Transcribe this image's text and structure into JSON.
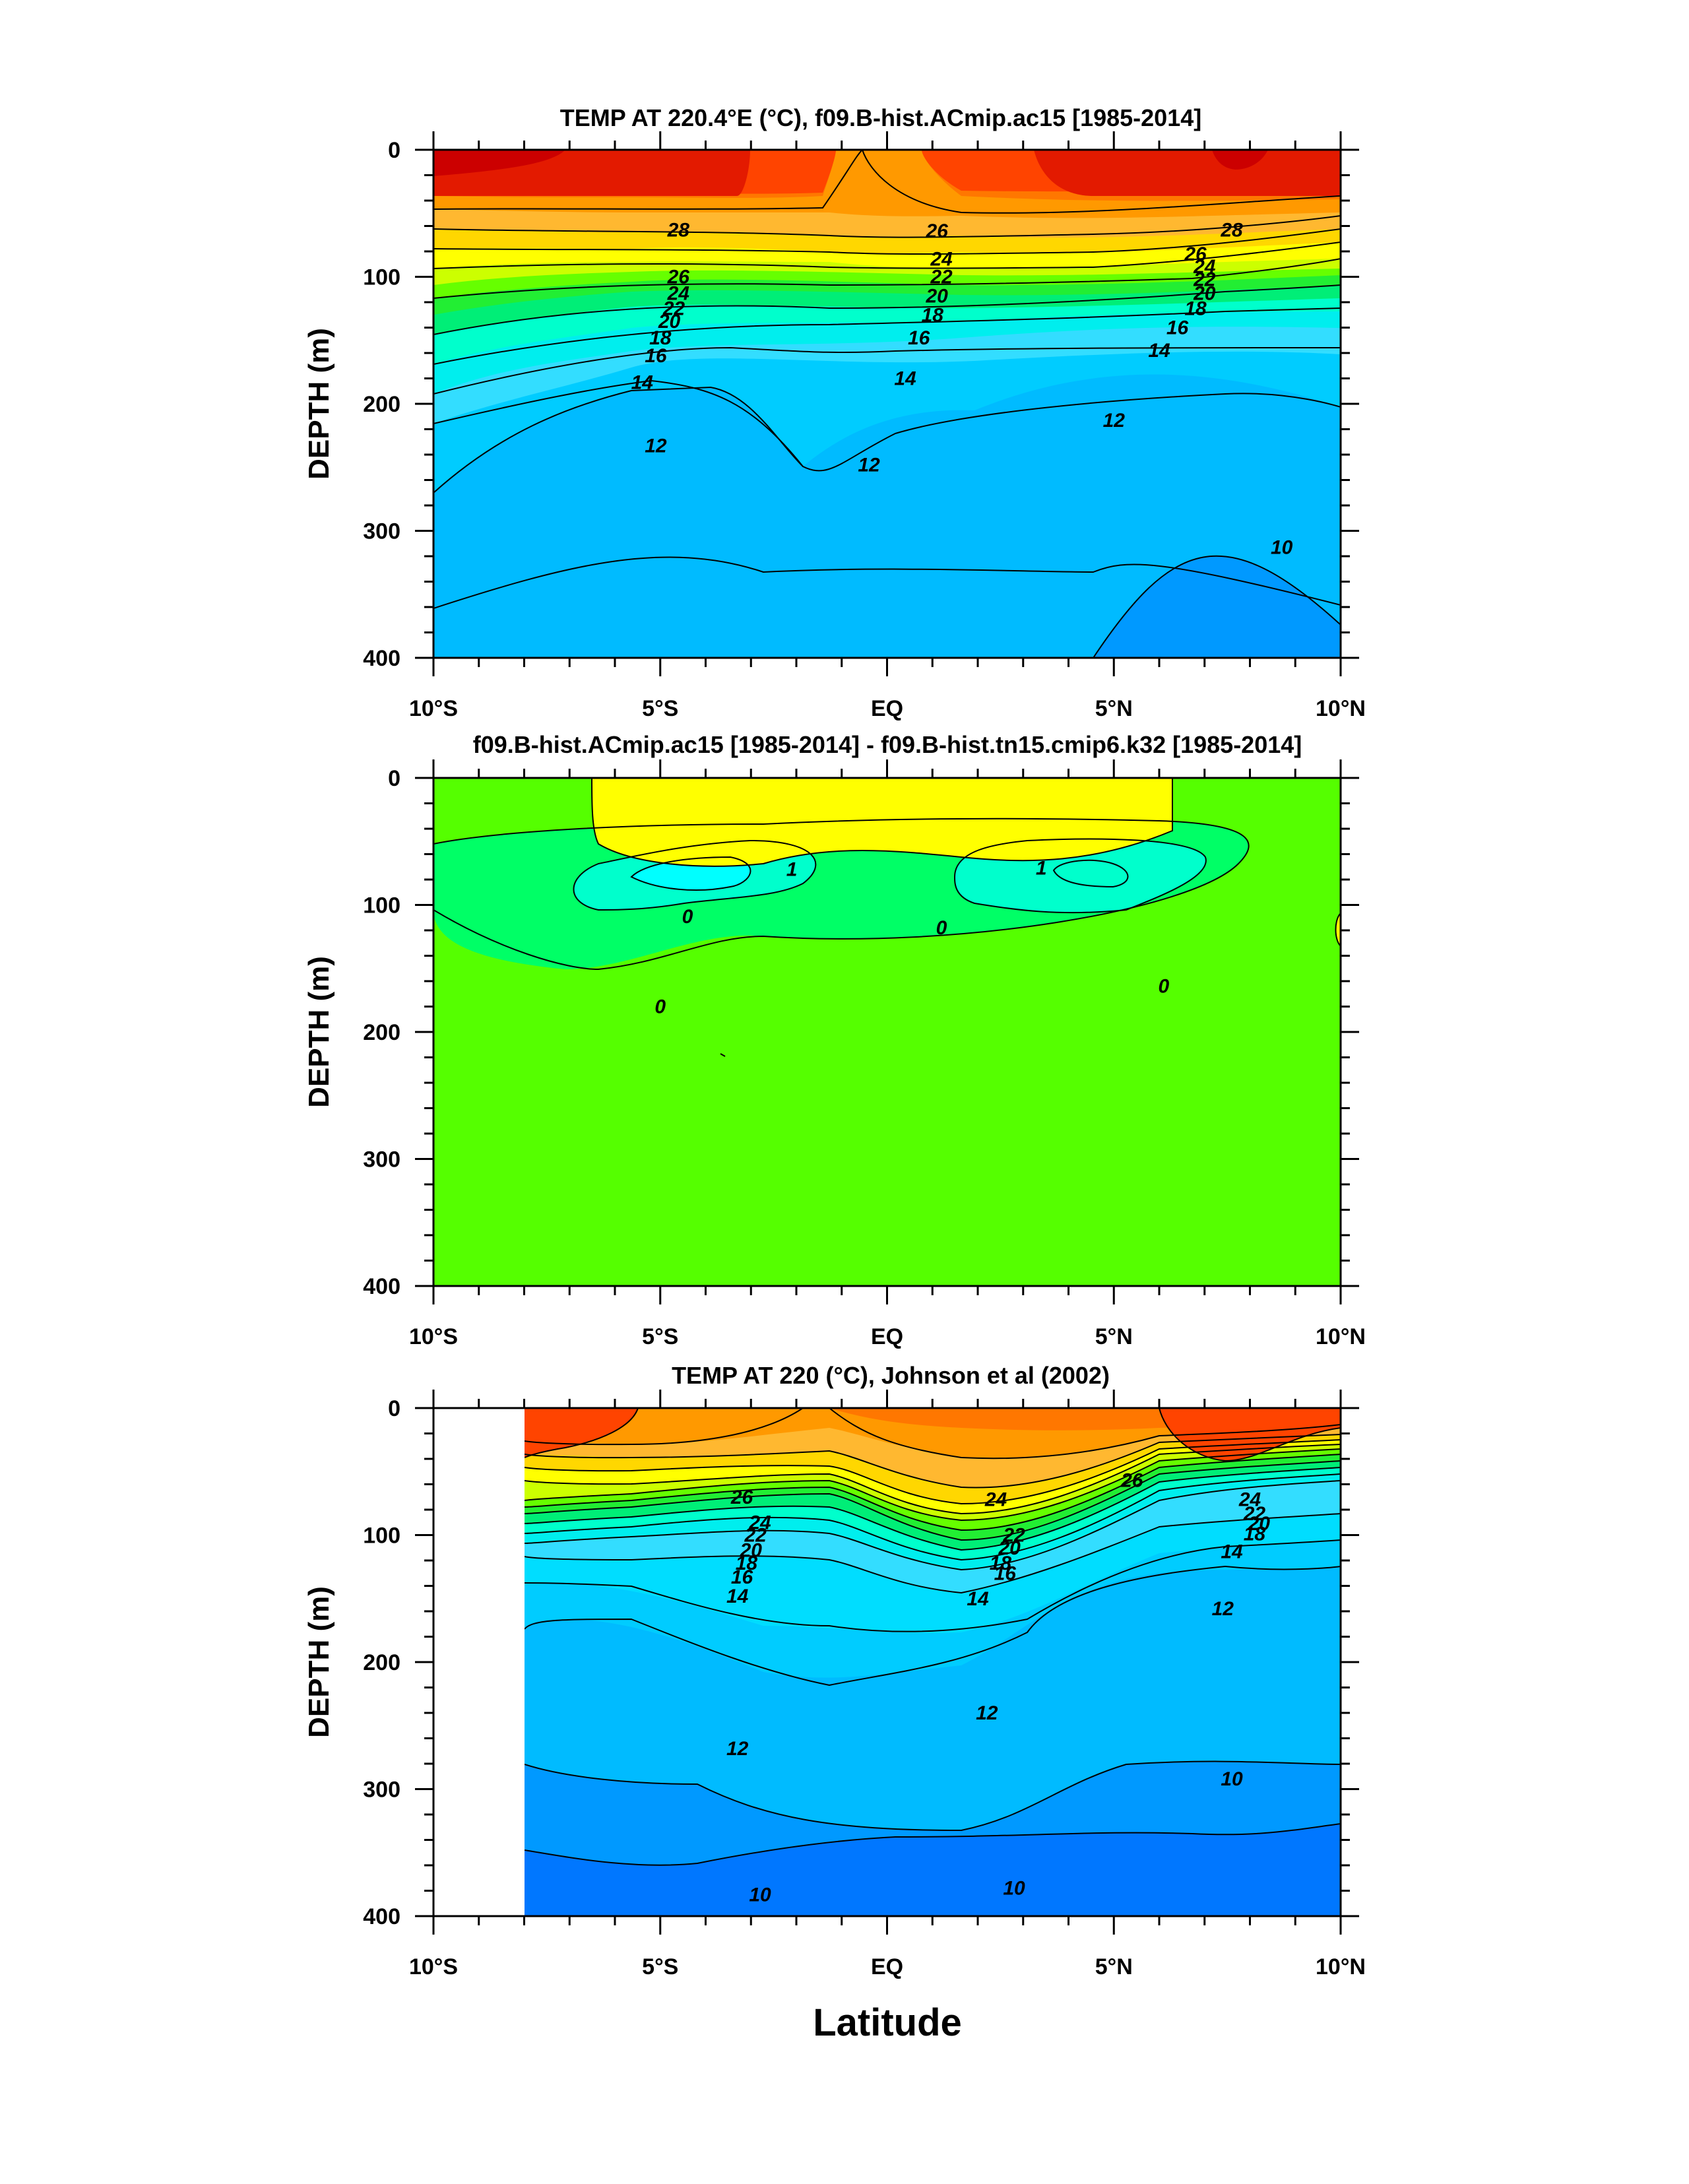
{
  "figure": {
    "xlabel": "Latitude",
    "colors": {
      "c28plus": "#cc0000",
      "c27": "#e31a00",
      "c26": "#ff4400",
      "c25": "#ff7700",
      "c24": "#ff9900",
      "c23": "#ffb830",
      "c22": "#ffd700",
      "c21": "#ffff00",
      "c20": "#ccff00",
      "c19": "#66ff00",
      "c18": "#22ee33",
      "c17": "#00ee77",
      "c16": "#00ffcc",
      "c15": "#00eeee",
      "c14": "#33ddff",
      "c13": "#00ccff",
      "c12": "#00bbff",
      "c11": "#0099ff",
      "c10": "#0077ff",
      "c9": "#0055ee",
      "diff_pos": "#ffff00",
      "diff_zero": "#55ff00",
      "diff_neg": "#00ff66",
      "diff_neg2": "#00ffcc",
      "diff_neg3": "#00ffff",
      "line": "#000000"
    }
  },
  "chart_data": [
    {
      "type": "contour",
      "title": "TEMP AT 220.4°E (°C), f09.B-hist.ACmip.ac15 [1985-2014]",
      "xlabel": "",
      "ylabel": "DEPTH (m)",
      "xlim": [
        -10,
        10
      ],
      "ylim": [
        400,
        0
      ],
      "x_ticks": [
        -10,
        -5,
        0,
        5,
        10
      ],
      "x_tick_labels": [
        "10°S",
        "5°S",
        "EQ",
        "5°N",
        "10°N"
      ],
      "y_ticks": [
        0,
        100,
        200,
        300,
        400
      ],
      "y_tick_labels": [
        "0",
        "100",
        "200",
        "300",
        "400"
      ],
      "contour_interval": 1,
      "contour_labels": [
        {
          "text": "28",
          "lat": -4.6,
          "depth": 63
        },
        {
          "text": "26",
          "lat": 1.1,
          "depth": 64
        },
        {
          "text": "24",
          "lat": 1.2,
          "depth": 86
        },
        {
          "text": "22",
          "lat": 1.2,
          "depth": 100
        },
        {
          "text": "20",
          "lat": 1.1,
          "depth": 115
        },
        {
          "text": "18",
          "lat": 1.0,
          "depth": 130
        },
        {
          "text": "16",
          "lat": 0.7,
          "depth": 148
        },
        {
          "text": "14",
          "lat": 0.4,
          "depth": 180
        },
        {
          "text": "12",
          "lat": -0.4,
          "depth": 248
        },
        {
          "text": "12",
          "lat": 5.0,
          "depth": 213
        },
        {
          "text": "28",
          "lat": 7.6,
          "depth": 63
        },
        {
          "text": "26",
          "lat": 6.8,
          "depth": 82
        },
        {
          "text": "24",
          "lat": 7.0,
          "depth": 92
        },
        {
          "text": "22",
          "lat": 7.0,
          "depth": 102
        },
        {
          "text": "20",
          "lat": 7.0,
          "depth": 113
        },
        {
          "text": "18",
          "lat": 6.8,
          "depth": 125
        },
        {
          "text": "16",
          "lat": 6.4,
          "depth": 140
        },
        {
          "text": "14",
          "lat": 6.0,
          "depth": 158
        },
        {
          "text": "26",
          "lat": -4.6,
          "depth": 100
        },
        {
          "text": "24",
          "lat": -4.6,
          "depth": 113
        },
        {
          "text": "22",
          "lat": -4.7,
          "depth": 125
        },
        {
          "text": "20",
          "lat": -4.8,
          "depth": 135
        },
        {
          "text": "18",
          "lat": -5.0,
          "depth": 148
        },
        {
          "text": "16",
          "lat": -5.1,
          "depth": 162
        },
        {
          "text": "14",
          "lat": -5.4,
          "depth": 183
        },
        {
          "text": "12",
          "lat": -5.1,
          "depth": 233
        },
        {
          "text": "10",
          "lat": 8.7,
          "depth": 313
        }
      ]
    },
    {
      "type": "contour",
      "title": "f09.B-hist.ACmip.ac15 [1985-2014] - f09.B-hist.tn15.cmip6.k32 [1985-2014]",
      "xlabel": "",
      "ylabel": "DEPTH (m)",
      "xlim": [
        -10,
        10
      ],
      "ylim": [
        400,
        0
      ],
      "x_ticks": [
        -10,
        -5,
        0,
        5,
        10
      ],
      "x_tick_labels": [
        "10°S",
        "5°S",
        "EQ",
        "5°N",
        "10°N"
      ],
      "y_ticks": [
        0,
        100,
        200,
        300,
        400
      ],
      "y_tick_labels": [
        "0",
        "100",
        "200",
        "300",
        "400"
      ],
      "contour_interval": 1,
      "contour_labels": [
        {
          "text": "1",
          "lat": -2.1,
          "depth": 72
        },
        {
          "text": "1",
          "lat": 3.4,
          "depth": 71
        },
        {
          "text": "0",
          "lat": -4.4,
          "depth": 109
        },
        {
          "text": "0",
          "lat": 1.2,
          "depth": 118
        },
        {
          "text": "0",
          "lat": -5.0,
          "depth": 180
        },
        {
          "text": "0",
          "lat": 6.1,
          "depth": 164
        }
      ]
    },
    {
      "type": "contour",
      "title": "TEMP AT 220 (°C), Johnson et al (2002)",
      "xlabel": "Latitude",
      "ylabel": "DEPTH (m)",
      "xlim": [
        -10,
        10
      ],
      "ylim": [
        400,
        0
      ],
      "x_ticks": [
        -10,
        -5,
        0,
        5,
        10
      ],
      "x_tick_labels": [
        "10°S",
        "5°S",
        "EQ",
        "5°N",
        "10°N"
      ],
      "y_ticks": [
        0,
        100,
        200,
        300,
        400
      ],
      "y_tick_labels": [
        "0",
        "100",
        "200",
        "300",
        "400"
      ],
      "contour_interval": 1,
      "data_coverage_lat": [
        -8,
        10
      ],
      "contour_labels": [
        {
          "text": "26",
          "lat": -3.2,
          "depth": 70
        },
        {
          "text": "24",
          "lat": -2.8,
          "depth": 90
        },
        {
          "text": "22",
          "lat": -2.9,
          "depth": 100
        },
        {
          "text": "20",
          "lat": -3.0,
          "depth": 112
        },
        {
          "text": "18",
          "lat": -3.1,
          "depth": 122
        },
        {
          "text": "16",
          "lat": -3.2,
          "depth": 133
        },
        {
          "text": "14",
          "lat": -3.3,
          "depth": 148
        },
        {
          "text": "24",
          "lat": 2.4,
          "depth": 72
        },
        {
          "text": "22",
          "lat": 2.8,
          "depth": 100
        },
        {
          "text": "20",
          "lat": 2.7,
          "depth": 110
        },
        {
          "text": "18",
          "lat": 2.5,
          "depth": 122
        },
        {
          "text": "16",
          "lat": 2.6,
          "depth": 130
        },
        {
          "text": "14",
          "lat": 2.0,
          "depth": 150
        },
        {
          "text": "26",
          "lat": 5.4,
          "depth": 57
        },
        {
          "text": "24",
          "lat": 8.0,
          "depth": 72
        },
        {
          "text": "22",
          "lat": 8.1,
          "depth": 83
        },
        {
          "text": "20",
          "lat": 8.2,
          "depth": 91
        },
        {
          "text": "18",
          "lat": 8.1,
          "depth": 99
        },
        {
          "text": "14",
          "lat": 7.6,
          "depth": 113
        },
        {
          "text": "12",
          "lat": 7.4,
          "depth": 158
        },
        {
          "text": "12",
          "lat": -3.3,
          "depth": 268
        },
        {
          "text": "12",
          "lat": 2.2,
          "depth": 240
        },
        {
          "text": "10",
          "lat": 7.6,
          "depth": 292
        },
        {
          "text": "10",
          "lat": -2.8,
          "depth": 383
        },
        {
          "text": "10",
          "lat": 2.8,
          "depth": 378
        }
      ]
    }
  ]
}
